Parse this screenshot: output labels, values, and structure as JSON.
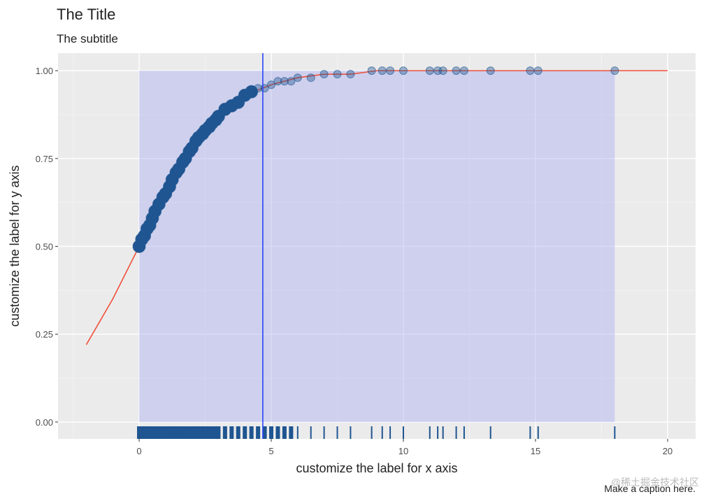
{
  "chart_data": {
    "type": "ecdf",
    "title": "The Title",
    "subtitle": "The subtitle",
    "x_label": "customize the label for x axis",
    "y_label": "customize the label for y axis",
    "caption": "Make a caption here.",
    "watermark": "@稀土掘金技术社区",
    "xlim": [
      -3.07,
      21.06
    ],
    "ylim": [
      -0.048,
      1.05
    ],
    "xticks": [
      0,
      5,
      10,
      15,
      20
    ],
    "yticks": [
      {
        "value": 0,
        "label": "0.00"
      },
      {
        "value": 0.25,
        "label": "0.25"
      },
      {
        "value": 0.5,
        "label": "0.50"
      },
      {
        "value": 0.75,
        "label": "0.75"
      },
      {
        "value": 1,
        "label": "1.00"
      }
    ],
    "grid": true,
    "shade": {
      "x": [
        0,
        18
      ],
      "y": [
        0,
        1
      ],
      "color": "#aab0f0"
    },
    "vline": {
      "x": 4.68,
      "color": "#2b45f5"
    },
    "curve": {
      "color": "#f0503a",
      "x": [
        -2,
        -1,
        0,
        1,
        2,
        3,
        4,
        5,
        6,
        7,
        8,
        9,
        10,
        12,
        14,
        16,
        18,
        20
      ],
      "y": [
        0.22,
        0.35,
        0.5,
        0.65,
        0.78,
        0.87,
        0.93,
        0.96,
        0.98,
        0.99,
        0.99,
        1,
        1,
        1,
        1,
        1,
        1,
        1
      ]
    },
    "points": {
      "color": "#1f5591",
      "x": [
        0,
        0.1,
        0.2,
        0.3,
        0.4,
        0.5,
        0.6,
        0.75,
        0.9,
        1,
        1.15,
        1.25,
        1.4,
        1.5,
        1.65,
        1.75,
        1.9,
        2,
        2.15,
        2.25,
        2.4,
        2.5,
        2.65,
        2.75,
        2.9,
        3,
        3.25,
        3.5,
        3.75,
        4,
        4.25,
        4.5,
        4.75,
        5,
        5.25,
        5.5,
        5.75,
        6,
        6.5,
        7,
        7.5,
        8,
        8.8,
        9.2,
        9.5,
        10,
        11,
        11.3,
        11.5,
        12,
        12.3,
        13.3,
        14.8,
        15.1,
        18
      ],
      "y": [
        0.5,
        0.52,
        0.53,
        0.55,
        0.56,
        0.58,
        0.6,
        0.62,
        0.64,
        0.65,
        0.67,
        0.69,
        0.71,
        0.72,
        0.74,
        0.75,
        0.77,
        0.78,
        0.8,
        0.81,
        0.82,
        0.83,
        0.84,
        0.85,
        0.86,
        0.87,
        0.89,
        0.9,
        0.91,
        0.93,
        0.94,
        0.95,
        0.95,
        0.96,
        0.97,
        0.97,
        0.97,
        0.98,
        0.98,
        0.99,
        0.99,
        0.99,
        1,
        1,
        1,
        1,
        1,
        1,
        1,
        1,
        1,
        1,
        1,
        1,
        1
      ]
    }
  }
}
